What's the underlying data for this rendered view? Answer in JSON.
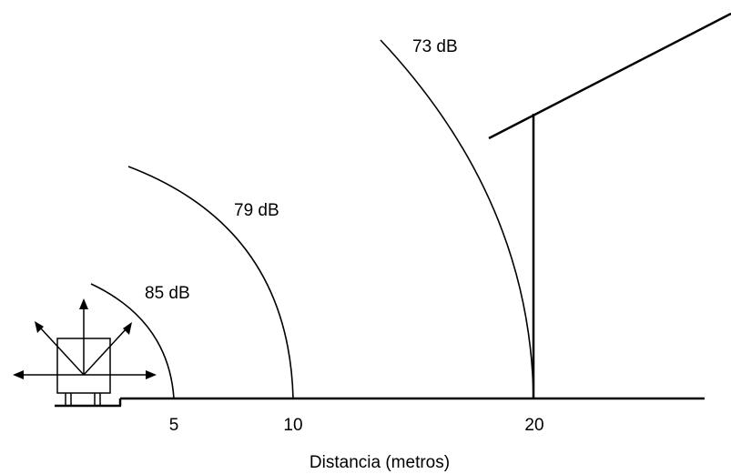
{
  "diagram": {
    "arcs": [
      {
        "label": "85 dB"
      },
      {
        "label": "79 dB"
      },
      {
        "label": "73 dB"
      }
    ],
    "ticks": [
      "5",
      "10",
      "20"
    ],
    "axis_title": "Distancia (metros)",
    "colors": {
      "ink": "#000000",
      "background": "#ffffff"
    },
    "icons": {
      "source": "noise-source-box-icon",
      "house": "house-wall-icon"
    }
  }
}
